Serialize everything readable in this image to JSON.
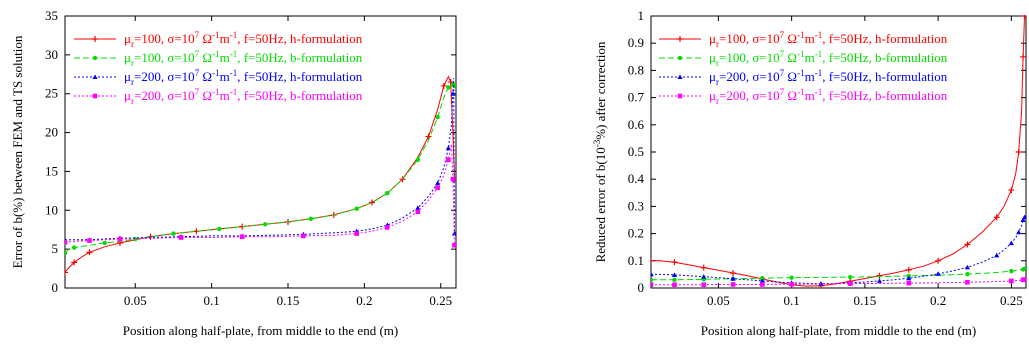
{
  "chart_data": [
    {
      "type": "line",
      "xlabel": "Position along half-plate, from middle to the end (m)",
      "ylabel": "Error of b(%) between FEM and TS solution",
      "xlim": [
        0.004,
        0.26
      ],
      "ylim": [
        0,
        35
      ],
      "xticks": [
        "0.05",
        "0.1",
        "0.15",
        "0.2",
        "0.25"
      ],
      "yticks": [
        "0",
        "5",
        "10",
        "15",
        "20",
        "25",
        "30",
        "35"
      ],
      "legend_position": "top-left",
      "series": [
        {
          "name": "μr=100, σ=10^7 Ω^-1m^-1, f=50Hz, h-formulation",
          "color": "#ff0000",
          "dash": "solid",
          "marker": "plus",
          "x": [
            0.004,
            0.006,
            0.01,
            0.015,
            0.02,
            0.03,
            0.04,
            0.05,
            0.06,
            0.075,
            0.09,
            0.105,
            0.12,
            0.135,
            0.15,
            0.165,
            0.18,
            0.195,
            0.205,
            0.215,
            0.225,
            0.235,
            0.242,
            0.248,
            0.252,
            0.255,
            0.2565,
            0.258,
            0.259
          ],
          "y": [
            2.0,
            2.5,
            3.3,
            4.0,
            4.6,
            5.3,
            5.8,
            6.2,
            6.6,
            7.0,
            7.3,
            7.6,
            7.9,
            8.2,
            8.5,
            8.9,
            9.4,
            10.2,
            11.0,
            12.2,
            14.0,
            16.8,
            19.5,
            23.0,
            26.0,
            27.2,
            26.5,
            20.0,
            14.0
          ]
        },
        {
          "name": "μr=100, σ=10^7 Ω^-1m^-1, f=50Hz, b-formulation",
          "color": "#00dd00",
          "dash": "dash",
          "marker": "circle",
          "x": [
            0.004,
            0.006,
            0.01,
            0.02,
            0.03,
            0.04,
            0.05,
            0.06,
            0.075,
            0.09,
            0.105,
            0.12,
            0.135,
            0.15,
            0.165,
            0.18,
            0.195,
            0.205,
            0.215,
            0.225,
            0.235,
            0.242,
            0.248,
            0.252,
            0.255,
            0.257,
            0.258,
            0.259
          ],
          "y": [
            4.5,
            4.9,
            5.2,
            5.5,
            5.8,
            6.0,
            6.3,
            6.6,
            7.0,
            7.3,
            7.6,
            7.9,
            8.2,
            8.5,
            8.9,
            9.4,
            10.2,
            11.0,
            12.2,
            14.0,
            16.5,
            19.0,
            22.0,
            24.5,
            25.8,
            26.3,
            26.2,
            26.0
          ]
        },
        {
          "name": "μr=200, σ=10^7 Ω^-1m^-1, f=50Hz, h-formulation",
          "color": "#0000ff",
          "dash": "dot",
          "marker": "triangle",
          "x": [
            0.004,
            0.01,
            0.02,
            0.03,
            0.04,
            0.06,
            0.08,
            0.1,
            0.12,
            0.14,
            0.16,
            0.18,
            0.195,
            0.205,
            0.215,
            0.225,
            0.235,
            0.242,
            0.248,
            0.252,
            0.255,
            0.257,
            0.258,
            0.2585,
            0.259
          ],
          "y": [
            6.2,
            6.2,
            6.2,
            6.3,
            6.4,
            6.5,
            6.6,
            6.7,
            6.7,
            6.8,
            6.9,
            7.1,
            7.3,
            7.6,
            8.1,
            9.0,
            10.3,
            11.8,
            13.5,
            15.5,
            18.0,
            21.0,
            25.0,
            27.0,
            7.0
          ]
        },
        {
          "name": "μr=200, σ=10^7 Ω^-1m^-1, f=50Hz, b-formulation",
          "color": "#ff00ff",
          "dash": "dot",
          "marker": "square",
          "x": [
            0.004,
            0.01,
            0.02,
            0.03,
            0.04,
            0.06,
            0.08,
            0.1,
            0.12,
            0.14,
            0.16,
            0.18,
            0.195,
            0.205,
            0.215,
            0.225,
            0.235,
            0.242,
            0.248,
            0.252,
            0.255,
            0.257,
            0.258,
            0.259
          ],
          "y": [
            5.9,
            6.0,
            6.1,
            6.2,
            6.3,
            6.4,
            6.5,
            6.5,
            6.6,
            6.6,
            6.7,
            6.8,
            7.0,
            7.3,
            7.8,
            8.6,
            9.8,
            11.3,
            12.9,
            14.5,
            16.5,
            18.5,
            14.0,
            5.5
          ]
        }
      ]
    },
    {
      "type": "line",
      "xlabel": "Position along half-plate, from middle to the end (m)",
      "ylabel": "Reduced error of b(10^-3%) after correction",
      "xlim": [
        0.004,
        0.26
      ],
      "ylim": [
        0,
        1
      ],
      "xticks": [
        "0.05",
        "0.1",
        "0.15",
        "0.2",
        "0.25"
      ],
      "yticks": [
        "0",
        "0.1",
        "0.2",
        "0.3",
        "0.4",
        "0.5",
        "0.6",
        "0.7",
        "0.8",
        "0.9",
        "1"
      ],
      "legend_position": "top-left",
      "series": [
        {
          "name": "μr=100, σ=10^7 Ω^-1m^-1, f=50Hz, h-formulation",
          "color": "#ff0000",
          "dash": "solid",
          "marker": "plus",
          "x": [
            0.004,
            0.01,
            0.02,
            0.03,
            0.04,
            0.05,
            0.06,
            0.07,
            0.08,
            0.09,
            0.1,
            0.11,
            0.12,
            0.13,
            0.14,
            0.15,
            0.16,
            0.17,
            0.18,
            0.19,
            0.2,
            0.21,
            0.22,
            0.23,
            0.24,
            0.245,
            0.25,
            0.253,
            0.255,
            0.257,
            0.258,
            0.259
          ],
          "y": [
            0.1,
            0.1,
            0.095,
            0.085,
            0.075,
            0.065,
            0.055,
            0.045,
            0.033,
            0.022,
            0.012,
            0.007,
            0.008,
            0.015,
            0.025,
            0.035,
            0.045,
            0.055,
            0.067,
            0.08,
            0.1,
            0.125,
            0.16,
            0.205,
            0.26,
            0.3,
            0.36,
            0.42,
            0.5,
            0.65,
            0.85,
            1.0
          ]
        },
        {
          "name": "μr=100, σ=10^7 Ω^-1m^-1, f=50Hz, b-formulation",
          "color": "#00dd00",
          "dash": "dash",
          "marker": "circle",
          "x": [
            0.004,
            0.01,
            0.02,
            0.03,
            0.04,
            0.05,
            0.06,
            0.07,
            0.08,
            0.09,
            0.1,
            0.12,
            0.14,
            0.16,
            0.18,
            0.2,
            0.22,
            0.24,
            0.25,
            0.255,
            0.258,
            0.259
          ],
          "y": [
            0.03,
            0.03,
            0.03,
            0.031,
            0.032,
            0.033,
            0.034,
            0.035,
            0.036,
            0.037,
            0.038,
            0.039,
            0.04,
            0.042,
            0.044,
            0.047,
            0.051,
            0.057,
            0.062,
            0.066,
            0.068,
            0.07
          ]
        },
        {
          "name": "μr=200, σ=10^7 Ω^-1m^-1, f=50Hz, h-formulation",
          "color": "#0000ff",
          "dash": "dot",
          "marker": "triangle",
          "x": [
            0.004,
            0.01,
            0.02,
            0.03,
            0.04,
            0.05,
            0.06,
            0.07,
            0.08,
            0.09,
            0.1,
            0.11,
            0.12,
            0.13,
            0.14,
            0.15,
            0.16,
            0.17,
            0.18,
            0.19,
            0.2,
            0.21,
            0.22,
            0.23,
            0.24,
            0.245,
            0.25,
            0.253,
            0.255,
            0.257,
            0.258,
            0.259
          ],
          "y": [
            0.05,
            0.05,
            0.048,
            0.045,
            0.042,
            0.038,
            0.034,
            0.03,
            0.026,
            0.022,
            0.019,
            0.017,
            0.016,
            0.017,
            0.019,
            0.022,
            0.026,
            0.03,
            0.036,
            0.043,
            0.052,
            0.063,
            0.076,
            0.095,
            0.12,
            0.14,
            0.165,
            0.185,
            0.205,
            0.23,
            0.25,
            0.26
          ]
        },
        {
          "name": "μr=200, σ=10^7 Ω^-1m^-1, f=50Hz, b-formulation",
          "color": "#ff00ff",
          "dash": "dot",
          "marker": "square",
          "x": [
            0.004,
            0.01,
            0.02,
            0.03,
            0.04,
            0.05,
            0.06,
            0.07,
            0.08,
            0.09,
            0.1,
            0.12,
            0.14,
            0.16,
            0.18,
            0.2,
            0.22,
            0.24,
            0.25,
            0.255,
            0.258,
            0.259
          ],
          "y": [
            0.012,
            0.012,
            0.012,
            0.012,
            0.012,
            0.013,
            0.013,
            0.013,
            0.013,
            0.014,
            0.014,
            0.015,
            0.016,
            0.017,
            0.018,
            0.019,
            0.021,
            0.024,
            0.026,
            0.028,
            0.03,
            0.031
          ]
        }
      ]
    }
  ]
}
